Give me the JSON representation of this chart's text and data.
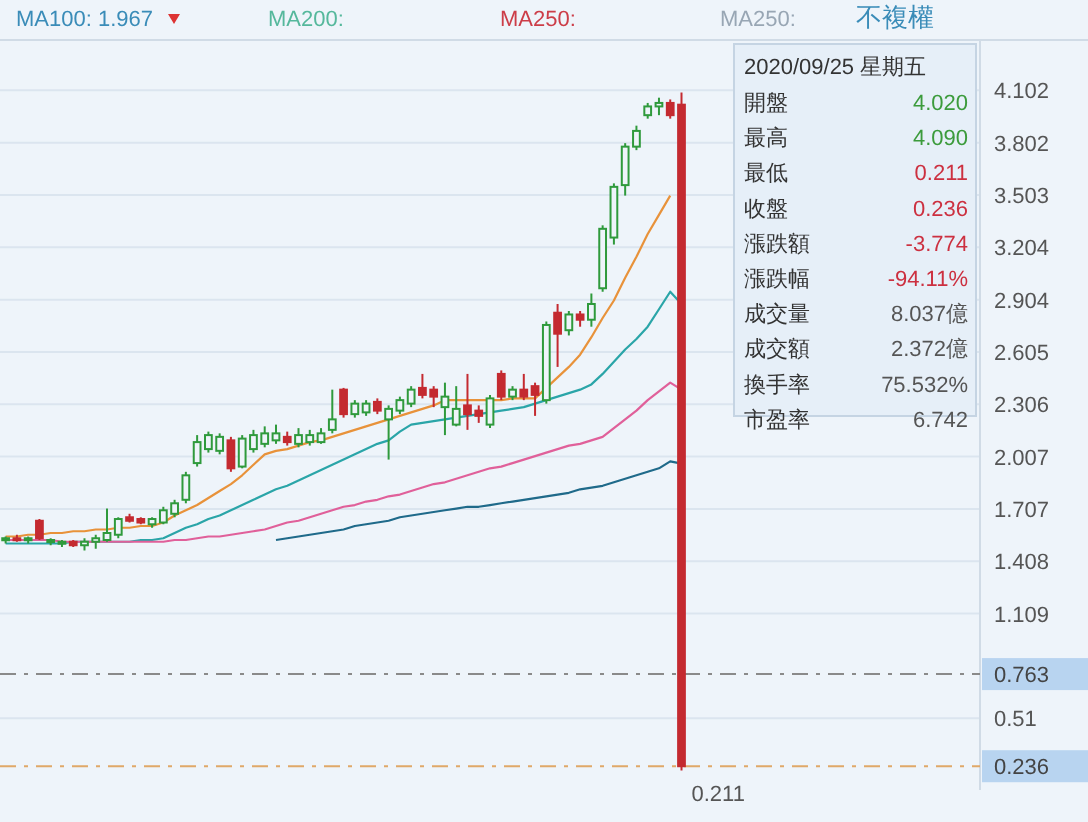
{
  "chart_data": {
    "type": "candlestick",
    "categories": [
      null,
      null,
      null,
      null,
      null,
      null,
      null,
      null,
      null,
      null,
      null,
      null,
      null,
      null,
      null,
      null,
      null,
      null,
      null,
      null,
      null,
      null,
      null,
      null,
      null,
      null,
      null,
      null,
      null,
      null,
      null,
      null,
      null,
      null,
      null,
      null,
      null,
      null,
      null,
      null,
      null,
      null,
      null,
      null,
      null,
      null,
      null,
      null,
      null,
      null,
      null,
      null,
      null,
      null,
      null,
      null,
      null,
      null,
      null,
      null,
      null,
      null,
      null,
      null,
      null,
      null,
      null,
      null,
      null,
      null,
      null,
      null,
      null,
      null,
      null,
      null,
      null,
      null,
      null,
      null,
      null,
      null,
      null,
      null,
      null,
      null,
      null
    ],
    "ohlc": [
      [
        1.53,
        1.55,
        1.51,
        1.54
      ],
      [
        1.54,
        1.56,
        1.52,
        1.53
      ],
      [
        1.53,
        1.55,
        1.51,
        1.54
      ],
      [
        1.64,
        1.65,
        1.53,
        1.54
      ],
      [
        1.52,
        1.54,
        1.5,
        1.53
      ],
      [
        1.51,
        1.53,
        1.49,
        1.52
      ],
      [
        1.52,
        1.53,
        1.49,
        1.5
      ],
      [
        1.5,
        1.54,
        1.47,
        1.52
      ],
      [
        1.52,
        1.56,
        1.48,
        1.54
      ],
      [
        1.53,
        1.71,
        1.52,
        1.57
      ],
      [
        1.56,
        1.66,
        1.54,
        1.65
      ],
      [
        1.66,
        1.68,
        1.63,
        1.64
      ],
      [
        1.65,
        1.66,
        1.62,
        1.63
      ],
      [
        1.62,
        1.66,
        1.6,
        1.65
      ],
      [
        1.63,
        1.72,
        1.62,
        1.7
      ],
      [
        1.68,
        1.76,
        1.66,
        1.74
      ],
      [
        1.76,
        1.92,
        1.74,
        1.9
      ],
      [
        1.97,
        2.13,
        1.95,
        2.09
      ],
      [
        2.05,
        2.15,
        2.03,
        2.13
      ],
      [
        2.04,
        2.14,
        2.02,
        2.12
      ],
      [
        2.1,
        2.12,
        1.92,
        1.94
      ],
      [
        1.95,
        2.13,
        1.94,
        2.11
      ],
      [
        2.05,
        2.16,
        2.03,
        2.13
      ],
      [
        2.08,
        2.18,
        2.06,
        2.14
      ],
      [
        2.1,
        2.19,
        2.08,
        2.14
      ],
      [
        2.12,
        2.15,
        2.07,
        2.09
      ],
      [
        2.08,
        2.17,
        2.06,
        2.13
      ],
      [
        2.09,
        2.16,
        2.07,
        2.13
      ],
      [
        2.09,
        2.17,
        2.08,
        2.14
      ],
      [
        2.16,
        2.39,
        2.14,
        2.22
      ],
      [
        2.39,
        2.4,
        2.23,
        2.25
      ],
      [
        2.25,
        2.33,
        2.23,
        2.31
      ],
      [
        2.26,
        2.33,
        2.24,
        2.31
      ],
      [
        2.32,
        2.34,
        2.25,
        2.27
      ],
      [
        2.22,
        2.3,
        1.99,
        2.28
      ],
      [
        2.27,
        2.35,
        2.25,
        2.33
      ],
      [
        2.31,
        2.41,
        2.29,
        2.39
      ],
      [
        2.4,
        2.48,
        2.34,
        2.36
      ],
      [
        2.39,
        2.41,
        2.29,
        2.35
      ],
      [
        2.29,
        2.43,
        2.13,
        2.35
      ],
      [
        2.19,
        2.41,
        2.18,
        2.28
      ],
      [
        2.3,
        2.48,
        2.16,
        2.25
      ],
      [
        2.27,
        2.3,
        2.2,
        2.24
      ],
      [
        2.19,
        2.36,
        2.17,
        2.34
      ],
      [
        2.48,
        2.5,
        2.33,
        2.35
      ],
      [
        2.35,
        2.41,
        2.33,
        2.39
      ],
      [
        2.39,
        2.48,
        2.33,
        2.35
      ],
      [
        2.41,
        2.43,
        2.24,
        2.36
      ],
      [
        2.33,
        2.78,
        2.31,
        2.76
      ],
      [
        2.83,
        2.88,
        2.52,
        2.71
      ],
      [
        2.73,
        2.84,
        2.7,
        2.82
      ],
      [
        2.82,
        2.84,
        2.75,
        2.79
      ],
      [
        2.79,
        2.94,
        2.75,
        2.88
      ],
      [
        2.97,
        3.33,
        2.95,
        3.31
      ],
      [
        3.26,
        3.57,
        3.22,
        3.55
      ],
      [
        3.56,
        3.8,
        3.5,
        3.78
      ],
      [
        3.78,
        3.9,
        3.76,
        3.87
      ],
      [
        3.96,
        4.03,
        3.94,
        4.01
      ],
      [
        4.01,
        4.06,
        3.96,
        4.03
      ],
      [
        4.03,
        4.05,
        3.94,
        3.96
      ],
      [
        4.02,
        4.09,
        0.211,
        0.236
      ],
      null,
      null,
      null,
      null,
      null,
      null,
      null,
      null,
      null,
      null,
      null,
      null,
      null,
      null,
      null,
      null,
      null,
      null,
      null,
      null,
      null,
      null,
      null,
      null,
      null,
      null
    ],
    "series": [
      {
        "type": "line",
        "color": "#e8923a",
        "values": [
          1.55,
          1.55,
          1.56,
          1.56,
          1.57,
          1.57,
          1.58,
          1.58,
          1.59,
          1.59,
          1.6,
          1.6,
          1.61,
          1.61,
          1.63,
          1.67,
          1.7,
          1.73,
          1.77,
          1.81,
          1.85,
          1.9,
          1.96,
          2.02,
          2.04,
          2.05,
          2.07,
          2.09,
          2.1,
          2.12,
          2.14,
          2.16,
          2.18,
          2.2,
          2.22,
          2.24,
          2.26,
          2.28,
          2.3,
          2.33,
          2.33,
          2.33,
          2.33,
          2.33,
          2.33,
          2.34,
          2.34,
          2.34,
          2.4,
          2.46,
          2.52,
          2.59,
          2.69,
          2.8,
          2.9,
          3.03,
          3.15,
          3.28,
          3.39,
          3.5,
          null,
          null,
          null,
          null,
          null,
          null,
          null,
          null,
          null,
          null,
          null,
          null,
          null,
          null,
          null,
          null,
          null,
          null,
          null,
          null,
          null,
          null,
          null,
          null,
          null,
          null,
          null
        ]
      },
      {
        "type": "line",
        "color": "#2aa5a8",
        "values": [
          1.51,
          1.51,
          1.51,
          1.51,
          1.51,
          1.51,
          1.52,
          1.52,
          1.52,
          1.52,
          1.52,
          1.52,
          1.53,
          1.53,
          1.54,
          1.57,
          1.6,
          1.62,
          1.65,
          1.67,
          1.7,
          1.73,
          1.76,
          1.79,
          1.82,
          1.84,
          1.87,
          1.9,
          1.93,
          1.96,
          1.99,
          2.02,
          2.05,
          2.08,
          2.1,
          2.15,
          2.19,
          2.2,
          2.21,
          2.22,
          2.23,
          2.24,
          2.25,
          2.26,
          2.27,
          2.28,
          2.29,
          2.31,
          2.33,
          2.35,
          2.37,
          2.39,
          2.42,
          2.48,
          2.55,
          2.62,
          2.68,
          2.75,
          2.85,
          2.95,
          2.88,
          null,
          null,
          null,
          null,
          null,
          null,
          null,
          null,
          null,
          null,
          null,
          null,
          null,
          null,
          null,
          null,
          null,
          null,
          null,
          null,
          null,
          null,
          null,
          null,
          null,
          null
        ]
      },
      {
        "type": "line",
        "color": "#e0609a",
        "values": [
          1.53,
          1.53,
          1.53,
          1.53,
          1.53,
          1.52,
          1.52,
          1.52,
          1.52,
          1.52,
          1.52,
          1.52,
          1.52,
          1.52,
          1.52,
          1.53,
          1.53,
          1.54,
          1.55,
          1.55,
          1.56,
          1.57,
          1.58,
          1.59,
          1.61,
          1.63,
          1.64,
          1.66,
          1.68,
          1.7,
          1.72,
          1.73,
          1.75,
          1.76,
          1.78,
          1.79,
          1.81,
          1.83,
          1.85,
          1.86,
          1.88,
          1.9,
          1.92,
          1.94,
          1.95,
          1.97,
          1.99,
          2.01,
          2.03,
          2.05,
          2.07,
          2.08,
          2.1,
          2.12,
          2.17,
          2.22,
          2.27,
          2.33,
          2.38,
          2.43,
          2.39,
          null,
          null,
          null,
          null,
          null,
          null,
          null,
          null,
          null,
          null,
          null,
          null,
          null,
          null,
          null,
          null,
          null,
          null,
          null,
          null,
          null,
          null,
          null,
          null,
          null,
          null
        ]
      },
      {
        "type": "line",
        "color": "#1f6a8a",
        "values": [
          null,
          null,
          null,
          null,
          null,
          null,
          null,
          null,
          null,
          null,
          null,
          null,
          null,
          null,
          null,
          null,
          null,
          null,
          null,
          null,
          null,
          null,
          null,
          null,
          1.53,
          1.54,
          1.55,
          1.56,
          1.57,
          1.58,
          1.59,
          1.61,
          1.62,
          1.63,
          1.64,
          1.66,
          1.67,
          1.68,
          1.69,
          1.7,
          1.71,
          1.72,
          1.72,
          1.73,
          1.74,
          1.75,
          1.76,
          1.77,
          1.78,
          1.79,
          1.8,
          1.82,
          1.83,
          1.84,
          1.86,
          1.88,
          1.9,
          1.92,
          1.94,
          1.98,
          1.967,
          null,
          null,
          null,
          null,
          null,
          null,
          null,
          null,
          null,
          null,
          null,
          null,
          null,
          null,
          null,
          null,
          null,
          null,
          null,
          null,
          null,
          null,
          null,
          null,
          null,
          null
        ]
      }
    ],
    "ylim": [
      0.1,
      4.39
    ],
    "yticks": [
      4.102,
      3.802,
      3.503,
      3.204,
      2.904,
      2.605,
      2.306,
      2.007,
      1.707,
      1.408,
      1.109,
      0.51
    ],
    "tick_labels": "y",
    "grid": "y",
    "ref_lines": [
      {
        "axis": "y",
        "value": 0.763,
        "label": "0.763",
        "color": "#8a8a8a",
        "line_style": "dashed"
      },
      {
        "axis": "y",
        "value": 0.236,
        "label": "0.236",
        "color": "#e0a868",
        "line_style": "dashed"
      }
    ],
    "annotations": [
      "MA100: 1.967",
      "MA200:",
      "MA250:",
      "MA250:",
      "不複權",
      "2020/09/25 星期五",
      "開盤",
      "4.020",
      "最高",
      "4.090",
      "最低",
      "0.211",
      "收盤",
      "0.236",
      "漲跌額",
      "-3.774",
      "漲跌幅",
      "-94.11%",
      "成交量",
      "8.037億",
      "成交額",
      "2.372億",
      "換手率",
      "75.532%",
      "市盈率",
      "6.742",
      {
        "text": "0.211",
        "y": 0.211
      }
    ]
  }
}
